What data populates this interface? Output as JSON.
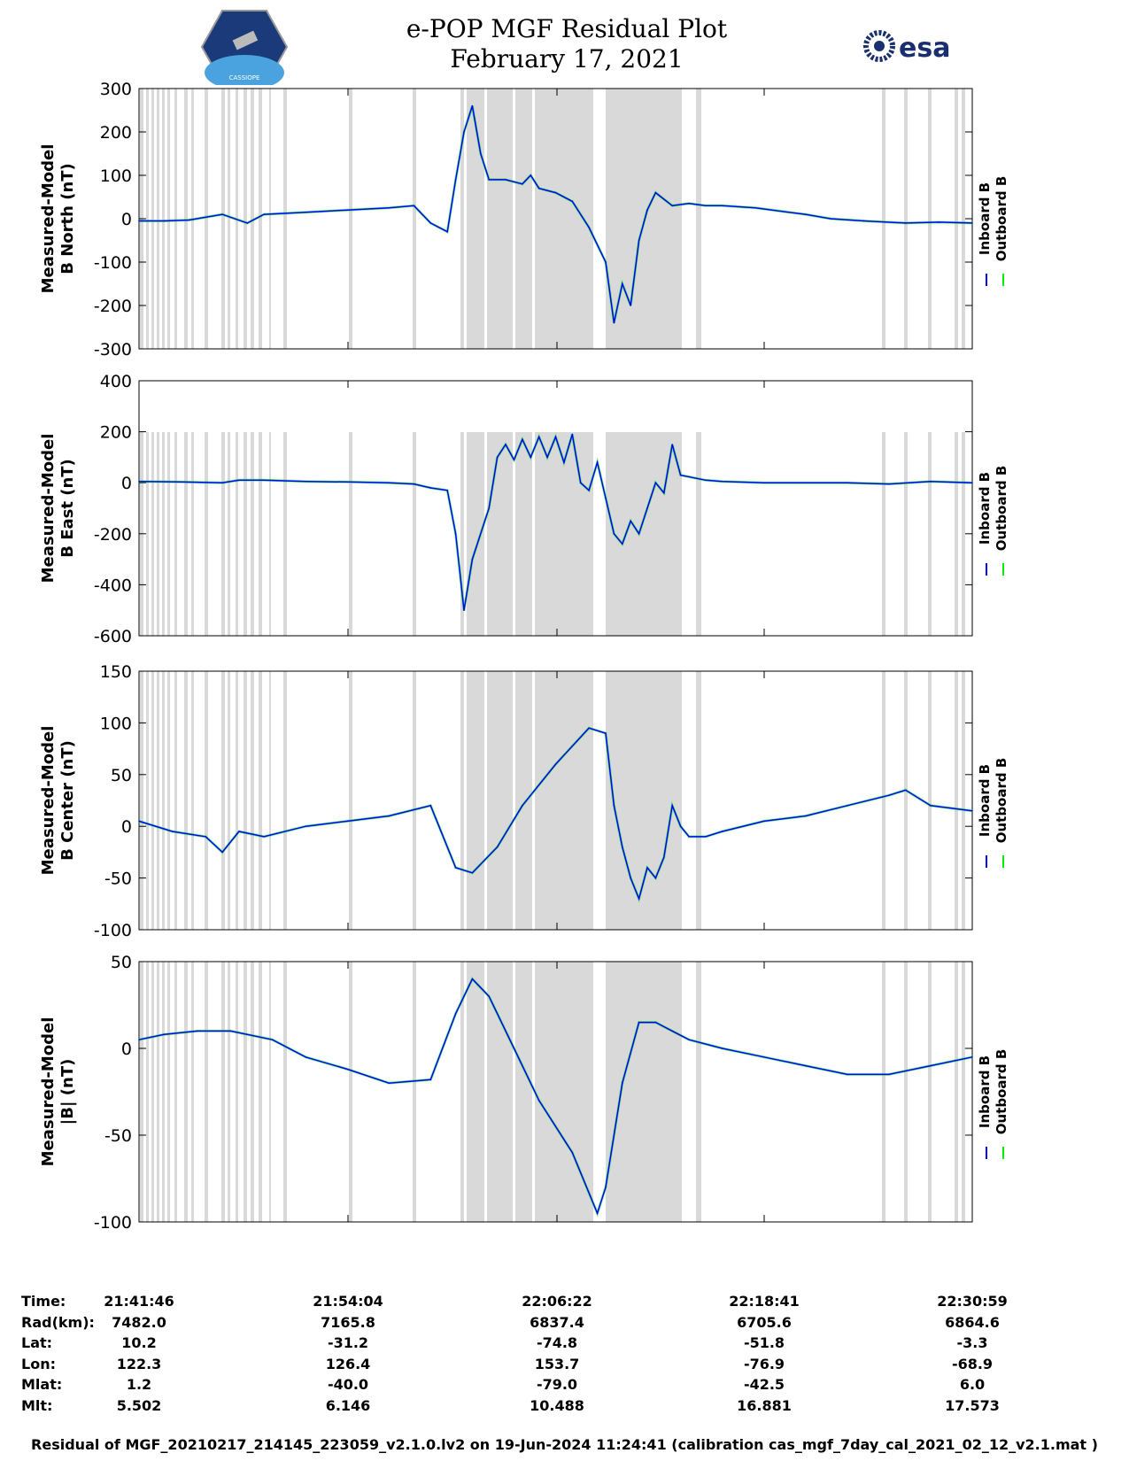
{
  "header": {
    "title": "e-POP MGF Residual Plot",
    "date": "February 17, 2021",
    "right_logo_text": "esa",
    "left_logo_text": "CASSIOPE"
  },
  "colors": {
    "inboard": "#0000ff",
    "outboard": "#00ee00",
    "shade": "#d9d9d9"
  },
  "chart_data": [
    {
      "type": "line",
      "title": "",
      "ylabel": [
        "Measured-Model",
        "B North (nT)"
      ],
      "ylim": [
        -300,
        300
      ],
      "yticks": [
        "300",
        "200",
        "100",
        "0",
        "-100",
        "-200",
        "-300"
      ],
      "legend": [
        "Inboard B",
        "Outboard B"
      ],
      "series": [
        {
          "name": "Inboard B",
          "x": [
            0,
            3,
            6,
            10,
            13,
            15,
            20,
            25,
            30,
            33,
            35,
            37,
            38,
            39,
            40,
            41,
            42,
            44,
            46,
            47,
            48,
            50,
            52,
            54,
            56,
            57,
            58,
            59,
            60,
            61,
            62,
            64,
            66,
            68,
            70,
            74,
            78,
            80,
            83,
            87,
            92,
            96,
            100
          ],
          "values": [
            -5,
            -5,
            -3,
            10,
            -10,
            10,
            15,
            20,
            25,
            30,
            -10,
            -30,
            90,
            200,
            260,
            150,
            90,
            90,
            80,
            100,
            70,
            60,
            40,
            -20,
            -100,
            -240,
            -150,
            -200,
            -50,
            20,
            60,
            30,
            35,
            30,
            30,
            25,
            15,
            10,
            0,
            -5,
            -10,
            -8,
            -10
          ]
        }
      ]
    },
    {
      "type": "line",
      "ylabel": [
        "Measured-Model",
        "B East (nT)"
      ],
      "ylim": [
        -600,
        400
      ],
      "yticks": [
        "400",
        "200",
        "0",
        "-200",
        "-400",
        "-600"
      ],
      "legend": [
        "Inboard B",
        "Outboard B"
      ],
      "series": [
        {
          "name": "Inboard B",
          "x": [
            0,
            5,
            10,
            12,
            15,
            20,
            25,
            30,
            33,
            35,
            37,
            38,
            39,
            40,
            42,
            43,
            44,
            45,
            46,
            47,
            48,
            49,
            50,
            51,
            52,
            53,
            54,
            55,
            56,
            57,
            58,
            59,
            60,
            61,
            62,
            63,
            64,
            65,
            68,
            70,
            75,
            80,
            85,
            90,
            95,
            100
          ],
          "values": [
            5,
            3,
            0,
            10,
            10,
            5,
            3,
            0,
            -5,
            -20,
            -30,
            -200,
            -500,
            -300,
            -100,
            100,
            150,
            90,
            170,
            100,
            180,
            100,
            180,
            80,
            190,
            0,
            -30,
            80,
            -60,
            -200,
            -240,
            -150,
            -200,
            -100,
            0,
            -40,
            150,
            30,
            10,
            5,
            0,
            0,
            0,
            -5,
            5,
            0
          ]
        }
      ]
    },
    {
      "type": "line",
      "ylabel": [
        "Measured-Model",
        "B Center (nT)"
      ],
      "ylim": [
        -100,
        150
      ],
      "yticks": [
        "150",
        "100",
        "50",
        "0",
        "-50",
        "-100"
      ],
      "legend": [
        "Inboard B",
        "Outboard B"
      ],
      "series": [
        {
          "name": "Inboard B",
          "x": [
            0,
            4,
            8,
            10,
            12,
            15,
            20,
            25,
            30,
            35,
            38,
            40,
            43,
            46,
            50,
            54,
            56,
            57,
            58,
            59,
            60,
            61,
            62,
            63,
            64,
            65,
            66,
            68,
            70,
            75,
            80,
            85,
            90,
            92,
            95,
            100
          ],
          "values": [
            5,
            -5,
            -10,
            -25,
            -5,
            -10,
            0,
            5,
            10,
            20,
            -40,
            -45,
            -20,
            20,
            60,
            95,
            90,
            20,
            -20,
            -50,
            -70,
            -40,
            -50,
            -30,
            20,
            0,
            -10,
            -10,
            -5,
            5,
            10,
            20,
            30,
            35,
            20,
            15
          ]
        }
      ]
    },
    {
      "type": "line",
      "ylabel": [
        "Measured-Model",
        "|B| (nT)"
      ],
      "ylim": [
        -100,
        50
      ],
      "yticks": [
        "50",
        "0",
        "-50",
        "-100"
      ],
      "legend": [
        "Inboard B",
        "Outboard B"
      ],
      "series": [
        {
          "name": "Inboard B",
          "x": [
            0,
            3,
            7,
            11,
            16,
            20,
            25,
            30,
            35,
            38,
            40,
            42,
            45,
            48,
            52,
            55,
            56,
            58,
            60,
            62,
            64,
            66,
            70,
            75,
            80,
            85,
            90,
            95,
            100
          ],
          "values": [
            5,
            8,
            10,
            10,
            5,
            -5,
            -12,
            -20,
            -18,
            20,
            40,
            30,
            0,
            -30,
            -60,
            -95,
            -80,
            -20,
            15,
            15,
            10,
            5,
            0,
            -5,
            -10,
            -15,
            -15,
            -10,
            -5
          ]
        }
      ]
    }
  ],
  "xaxis": {
    "row_labels": [
      "Time:",
      "Rad(km):",
      "Lat:",
      "Lon:",
      "Mlat:",
      "Mlt:"
    ],
    "columns": [
      [
        "21:41:46",
        "7482.0",
        "10.2",
        "122.3",
        "1.2",
        "5.502"
      ],
      [
        "21:54:04",
        "7165.8",
        "-31.2",
        "126.4",
        "-40.0",
        "6.146"
      ],
      [
        "22:06:22",
        "6837.4",
        "-74.8",
        "153.7",
        "-79.0",
        "10.488"
      ],
      [
        "22:18:41",
        "6705.6",
        "-51.8",
        "-76.9",
        "-42.5",
        "16.881"
      ],
      [
        "22:30:59",
        "6864.6",
        "-3.3",
        "-68.9",
        "6.0",
        "17.573"
      ]
    ]
  },
  "footer": "Residual of MGF_20210217_214145_223059_v2.1.0.lv2 on 19-Jun-2024 11:24:41 (calibration cas_mgf_7day_cal_2021_02_12_v2.1.mat )"
}
